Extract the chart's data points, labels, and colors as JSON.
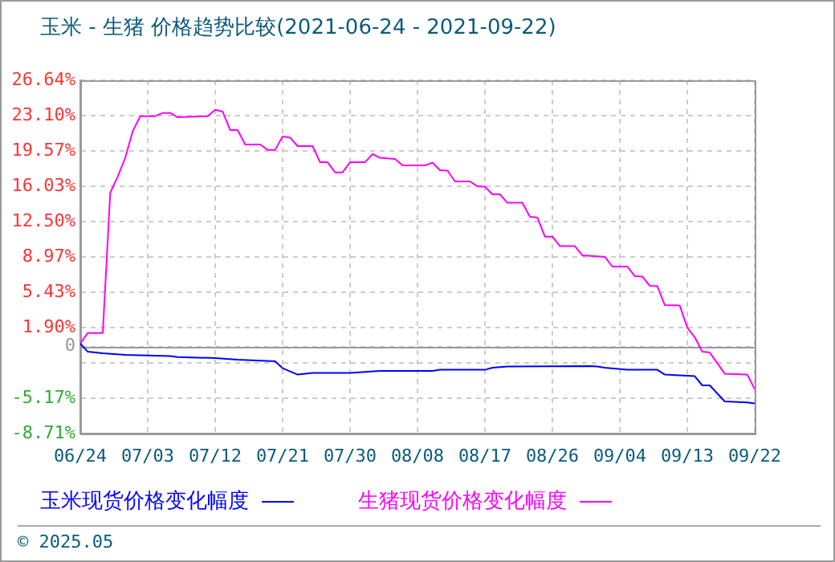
{
  "chart_data": {
    "type": "line",
    "title": "玉米 - 生猪 价格趋势比较(2021-06-24 - 2021-09-22)",
    "series": [
      {
        "name": "玉米现货价格变化幅度",
        "color": "#0000ff",
        "x": [
          "2021-06-24",
          "2021-06-25",
          "2021-06-27",
          "2021-06-30",
          "2021-07-06",
          "2021-07-07",
          "2021-07-12",
          "2021-07-15",
          "2021-07-20",
          "2021-07-21",
          "2021-07-23",
          "2021-07-25",
          "2021-07-30",
          "2021-08-03",
          "2021-08-10",
          "2021-08-11",
          "2021-08-17",
          "2021-08-18",
          "2021-08-20",
          "2021-08-31",
          "2021-09-01",
          "2021-09-02",
          "2021-09-05",
          "2021-09-09",
          "2021-09-10",
          "2021-09-14",
          "2021-09-15",
          "2021-09-16",
          "2021-09-18",
          "2021-09-21",
          "2021-09-22"
        ],
        "values": [
          0.29,
          -0.52,
          -0.68,
          -0.84,
          -0.95,
          -1.05,
          -1.16,
          -1.32,
          -1.48,
          -2.17,
          -2.81,
          -2.65,
          -2.65,
          -2.44,
          -2.44,
          -2.33,
          -2.33,
          -2.12,
          -2.01,
          -1.96,
          -2.01,
          -2.12,
          -2.33,
          -2.33,
          -2.81,
          -2.97,
          -3.89,
          -3.89,
          -5.5,
          -5.6,
          -5.7
        ]
      },
      {
        "name": "生猪现货价格变化幅度",
        "color": "#ff00ff",
        "x": [
          "2021-06-24",
          "2021-06-25",
          "2021-06-27",
          "2021-06-28",
          "2021-06-29",
          "2021-06-30",
          "2021-07-01",
          "2021-07-02",
          "2021-07-04",
          "2021-07-05",
          "2021-07-06",
          "2021-07-07",
          "2021-07-11",
          "2021-07-12",
          "2021-07-13",
          "2021-07-14",
          "2021-07-15",
          "2021-07-16",
          "2021-07-18",
          "2021-07-19",
          "2021-07-20",
          "2021-07-21",
          "2021-07-22",
          "2021-07-23",
          "2021-07-25",
          "2021-07-26",
          "2021-07-27",
          "2021-07-28",
          "2021-07-29",
          "2021-07-30",
          "2021-08-01",
          "2021-08-02",
          "2021-08-03",
          "2021-08-05",
          "2021-08-06",
          "2021-08-09",
          "2021-08-10",
          "2021-08-11",
          "2021-08-12",
          "2021-08-13",
          "2021-08-15",
          "2021-08-16",
          "2021-08-17",
          "2021-08-18",
          "2021-08-19",
          "2021-08-20",
          "2021-08-22",
          "2021-08-23",
          "2021-08-24",
          "2021-08-25",
          "2021-08-26",
          "2021-08-27",
          "2021-08-29",
          "2021-08-30",
          "2021-09-02",
          "2021-09-03",
          "2021-09-05",
          "2021-09-06",
          "2021-09-07",
          "2021-09-08",
          "2021-09-09",
          "2021-09-10",
          "2021-09-12",
          "2021-09-13",
          "2021-09-14",
          "2021-09-15",
          "2021-09-16",
          "2021-09-18",
          "2021-09-21",
          "2021-09-22"
        ],
        "values": [
          0.29,
          1.36,
          1.36,
          15.39,
          17.0,
          18.88,
          21.55,
          23.05,
          23.05,
          23.37,
          23.37,
          22.94,
          23.05,
          23.69,
          23.5,
          21.66,
          21.66,
          20.21,
          20.21,
          19.68,
          19.68,
          21.01,
          20.9,
          20.05,
          20.05,
          18.44,
          18.44,
          17.43,
          17.43,
          18.44,
          18.44,
          19.25,
          18.88,
          18.77,
          18.12,
          18.12,
          18.4,
          17.64,
          17.6,
          16.52,
          16.52,
          16.03,
          16.0,
          15.23,
          15.23,
          14.38,
          14.38,
          12.98,
          12.9,
          11.0,
          11.0,
          10.04,
          10.04,
          9.12,
          8.97,
          8.0,
          8.0,
          7.04,
          7.0,
          6.07,
          6.05,
          4.14,
          4.1,
          1.89,
          0.93,
          -0.52,
          -0.6,
          -2.72,
          -2.81,
          -4.26
        ]
      }
    ],
    "xlim": [
      "2021-06-24",
      "2021-09-22"
    ],
    "xticks": [
      {
        "value": "2021-06-24",
        "label": "06/24"
      },
      {
        "value": "2021-07-03",
        "label": "07/03"
      },
      {
        "value": "2021-07-12",
        "label": "07/12"
      },
      {
        "value": "2021-07-21",
        "label": "07/21"
      },
      {
        "value": "2021-07-30",
        "label": "07/30"
      },
      {
        "value": "2021-08-08",
        "label": "08/08"
      },
      {
        "value": "2021-08-17",
        "label": "08/17"
      },
      {
        "value": "2021-08-26",
        "label": "08/26"
      },
      {
        "value": "2021-09-04",
        "label": "09/04"
      },
      {
        "value": "2021-09-13",
        "label": "09/13"
      },
      {
        "value": "2021-09-22",
        "label": "09/22"
      }
    ],
    "ylim": [
      -8.71,
      26.64
    ],
    "yticks": [
      {
        "value": -8.71,
        "label": "-8.71%"
      },
      {
        "value": -5.17,
        "label": "-5.17%"
      },
      {
        "value": -1.64,
        "label": null
      },
      {
        "value": 0,
        "label": "0"
      },
      {
        "value": 1.9,
        "label": "1.90%"
      },
      {
        "value": 5.43,
        "label": "5.43%"
      },
      {
        "value": 8.97,
        "label": "8.97%"
      },
      {
        "value": 12.5,
        "label": "12.50%"
      },
      {
        "value": 16.03,
        "label": "16.03%"
      },
      {
        "value": 19.57,
        "label": "19.57%"
      },
      {
        "value": 23.1,
        "label": "23.10%"
      },
      {
        "value": 26.64,
        "label": "26.64%"
      }
    ],
    "ref_lines": [
      {
        "axis": "y",
        "value": 0,
        "color": "#999999",
        "line_style": "solid"
      }
    ],
    "grid": true,
    "legend": "bottom",
    "marker": "none",
    "line_style": "solid",
    "annotations": [
      "© 2025.05"
    ]
  }
}
